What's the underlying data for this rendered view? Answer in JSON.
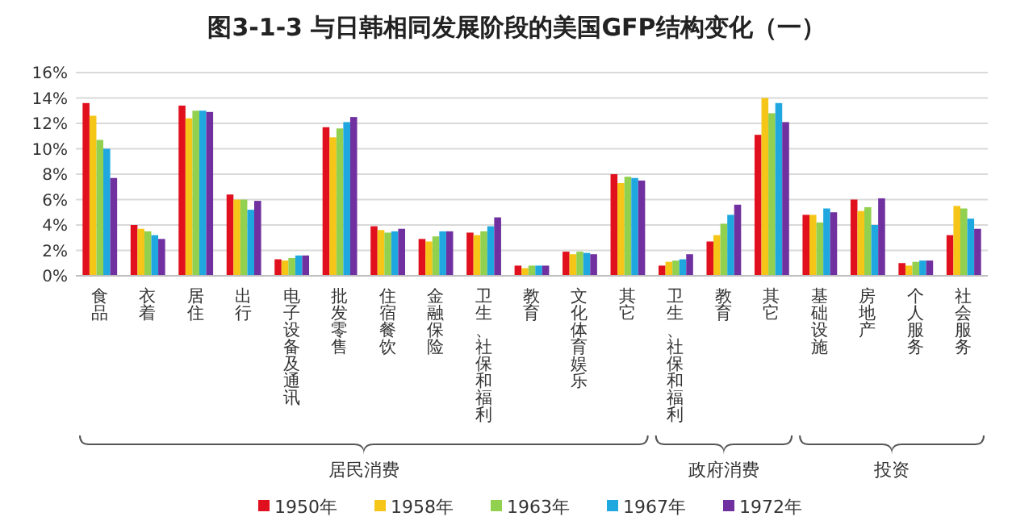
{
  "chart_data": {
    "type": "bar",
    "title": "图3-1-3 与日韩相同发展阶段的美国GFP结构变化（一）",
    "categories": [
      "食品",
      "衣着",
      "居住",
      "出行",
      "电子设备及通讯",
      "批发零售",
      "住宿餐饮",
      "金融保险",
      "卫生、社保和福利",
      "教育",
      "文化体育娱乐",
      "其它",
      "卫生、社保和福利",
      "教育",
      "其它",
      "基础设施",
      "房地产",
      "个人服务",
      "社会服务"
    ],
    "series": [
      {
        "name": "1950年",
        "color": "#e0101e",
        "values": [
          13.6,
          4.0,
          13.4,
          6.4,
          1.3,
          11.7,
          3.9,
          2.9,
          3.4,
          0.8,
          1.9,
          8.0,
          0.8,
          2.7,
          11.1,
          4.8,
          6.0,
          1.0,
          3.2
        ]
      },
      {
        "name": "1958年",
        "color": "#f5c518",
        "values": [
          12.6,
          3.7,
          12.4,
          6.0,
          1.2,
          10.9,
          3.6,
          2.7,
          3.2,
          0.6,
          1.7,
          7.3,
          1.1,
          3.2,
          14.0,
          4.8,
          5.1,
          0.8,
          5.5
        ]
      },
      {
        "name": "1963年",
        "color": "#92d050",
        "values": [
          10.7,
          3.5,
          13.0,
          6.0,
          1.4,
          11.6,
          3.4,
          3.1,
          3.5,
          0.8,
          1.9,
          7.8,
          1.2,
          4.1,
          12.8,
          4.2,
          5.4,
          1.1,
          5.3
        ]
      },
      {
        "name": "1967年",
        "color": "#1fa8e0",
        "values": [
          10.0,
          3.2,
          13.0,
          5.2,
          1.6,
          12.1,
          3.5,
          3.5,
          3.9,
          0.8,
          1.8,
          7.7,
          1.3,
          4.8,
          13.6,
          5.3,
          4.0,
          1.2,
          4.5
        ]
      },
      {
        "name": "1972年",
        "color": "#7030a0",
        "values": [
          7.7,
          2.9,
          12.9,
          5.9,
          1.6,
          12.5,
          3.7,
          3.5,
          4.6,
          0.8,
          1.7,
          7.5,
          1.7,
          5.6,
          12.1,
          5.0,
          6.1,
          1.2,
          3.7
        ]
      }
    ],
    "ylim": [
      0,
      16
    ],
    "yticks": [
      {
        "value": 0,
        "label": "0%"
      },
      {
        "value": 2,
        "label": "2%"
      },
      {
        "value": 4,
        "label": "4%"
      },
      {
        "value": 6,
        "label": "6%"
      },
      {
        "value": 8,
        "label": "8%"
      },
      {
        "value": 10,
        "label": "10%"
      },
      {
        "value": 12,
        "label": "12%"
      },
      {
        "value": 14,
        "label": "14%"
      },
      {
        "value": 16,
        "label": "16%"
      }
    ],
    "grid": "y",
    "legend": "bottom",
    "annotations": [
      "居民消费",
      "政府消费",
      "投资"
    ]
  }
}
